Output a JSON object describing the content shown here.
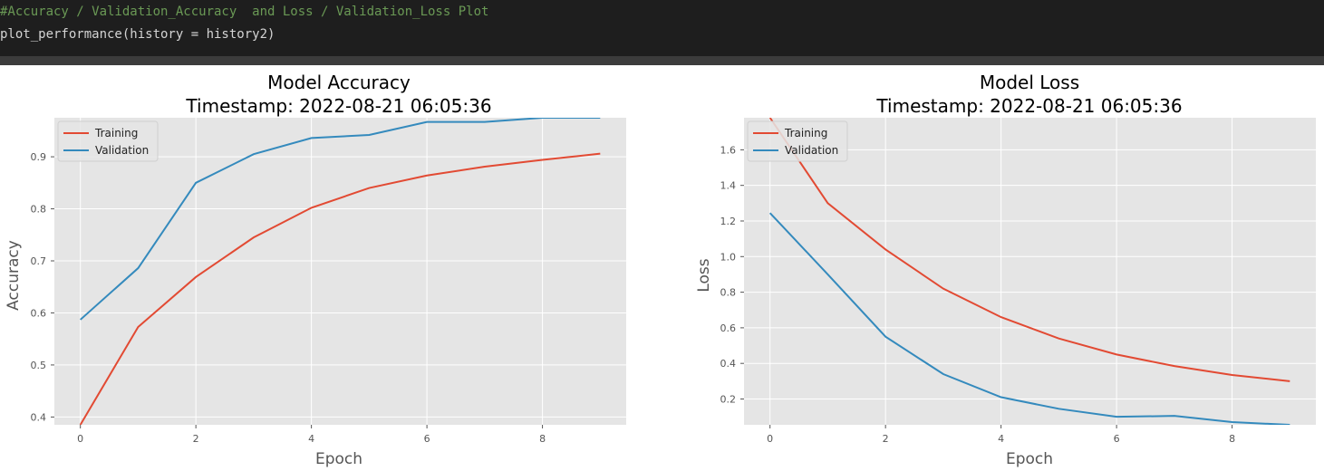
{
  "code": {
    "comment": "#Accuracy / Validation_Accuracy  and Loss / Validation_Loss Plot",
    "call": "plot_performance(history = history2)"
  },
  "colors": {
    "training": "#e24a33",
    "validation": "#348abd",
    "plot_bg": "#e5e5e5",
    "grid": "#ffffff"
  },
  "chart_data": [
    {
      "type": "line",
      "title": "Model Accuracy",
      "subtitle": "Timestamp: 2022-08-21 06:05:36",
      "xlabel": "Epoch",
      "ylabel": "Accuracy",
      "xlim": [
        -0.45,
        9.45
      ],
      "ylim": [
        0.385,
        0.975
      ],
      "xticks": [
        0,
        2,
        4,
        6,
        8
      ],
      "yticks": [
        0.4,
        0.5,
        0.6,
        0.7,
        0.8,
        0.9
      ],
      "grid": true,
      "legend": "upper left",
      "x": [
        0,
        1,
        2,
        3,
        4,
        5,
        6,
        7,
        8,
        9
      ],
      "series": [
        {
          "name": "Training",
          "values": [
            0.385,
            0.573,
            0.669,
            0.745,
            0.802,
            0.84,
            0.864,
            0.881,
            0.894,
            0.906
          ]
        },
        {
          "name": "Validation",
          "values": [
            0.587,
            0.686,
            0.85,
            0.905,
            0.936,
            0.942,
            0.967,
            0.967,
            0.975,
            0.975
          ]
        }
      ]
    },
    {
      "type": "line",
      "title": "Model Loss",
      "subtitle": "Timestamp: 2022-08-21 06:05:36",
      "xlabel": "Epoch",
      "ylabel": "Loss",
      "xlim": [
        -0.45,
        9.45
      ],
      "ylim": [
        0.055,
        1.78
      ],
      "xticks": [
        0,
        2,
        4,
        6,
        8
      ],
      "yticks": [
        0.2,
        0.4,
        0.6,
        0.8,
        1.0,
        1.2,
        1.4,
        1.6
      ],
      "grid": true,
      "legend": "upper left",
      "x": [
        0,
        1,
        2,
        3,
        4,
        5,
        6,
        7,
        8,
        9
      ],
      "series": [
        {
          "name": "Training",
          "values": [
            1.78,
            1.3,
            1.04,
            0.82,
            0.66,
            0.54,
            0.45,
            0.385,
            0.335,
            0.3
          ]
        },
        {
          "name": "Validation",
          "values": [
            1.245,
            0.9,
            0.55,
            0.34,
            0.21,
            0.145,
            0.1,
            0.105,
            0.07,
            0.055
          ]
        }
      ]
    }
  ]
}
